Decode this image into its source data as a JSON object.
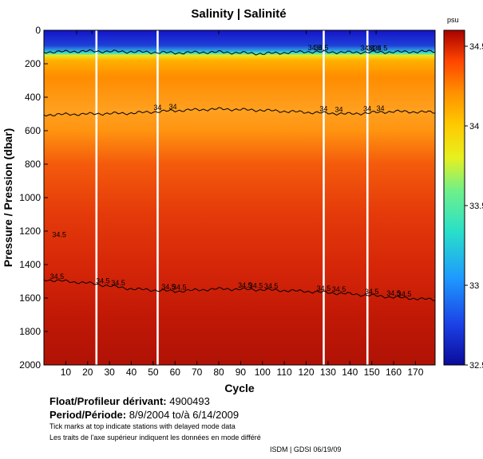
{
  "chart_data": {
    "type": "heatmap",
    "title": "Salinity | Salinité",
    "xlabel": "Cycle",
    "ylabel": "Pressure / Pression (dbar)",
    "xlim": [
      0,
      179
    ],
    "ylim": [
      2000,
      0
    ],
    "x_ticks": [
      10,
      20,
      30,
      40,
      50,
      60,
      70,
      80,
      90,
      100,
      110,
      120,
      130,
      140,
      150,
      160,
      170
    ],
    "y_ticks": [
      0,
      200,
      400,
      600,
      800,
      1000,
      1200,
      1400,
      1600,
      1800,
      2000
    ],
    "colorbar": {
      "unit": "psu",
      "range": [
        32.5,
        34.6
      ],
      "ticks": [
        32.5,
        33,
        33.5,
        34,
        34.5
      ]
    },
    "salinity_profile": [
      {
        "pressure": 0,
        "salinity": 32.6
      },
      {
        "pressure": 60,
        "salinity": 32.8
      },
      {
        "pressure": 120,
        "salinity": 33.6
      },
      {
        "pressure": 150,
        "salinity": 34.0
      },
      {
        "pressure": 200,
        "salinity": 34.15
      },
      {
        "pressure": 300,
        "salinity": 34.1
      },
      {
        "pressure": 500,
        "salinity": 34.0
      },
      {
        "pressure": 700,
        "salinity": 34.15
      },
      {
        "pressure": 1000,
        "salinity": 34.3
      },
      {
        "pressure": 1300,
        "salinity": 34.4
      },
      {
        "pressure": 1600,
        "salinity": 34.52
      },
      {
        "pressure": 2000,
        "salinity": 34.58
      }
    ],
    "contours": [
      {
        "level": 34.5,
        "label": "34.5",
        "pressure": [
          130,
          125,
          128,
          135,
          130,
          140,
          128,
          132,
          130,
          126
        ],
        "label_cycles": [
          124,
          127,
          148,
          151,
          154
        ]
      },
      {
        "level": 34,
        "label": "34",
        "pressure": [
          505,
          500,
          495,
          480,
          470,
          478,
          490,
          500,
          485,
          490
        ],
        "label_cycles": [
          52,
          59,
          128,
          135,
          148,
          154
        ]
      },
      {
        "level": 34.5,
        "label": "34.5",
        "pressure": [
          1490,
          1510,
          1545,
          1560,
          1545,
          1550,
          1560,
          1575,
          1595,
          1610
        ],
        "label_cycles": [
          6,
          27,
          34,
          57,
          62,
          92,
          97,
          104,
          128,
          135,
          150,
          160,
          165
        ]
      },
      {
        "level": 34.5,
        "label": "34.5",
        "pressure": [
          1245
        ],
        "label_cycles": [
          7
        ]
      }
    ],
    "missing_columns": [
      24,
      52,
      128,
      148
    ],
    "contour_cycle_grid": [
      0,
      20,
      40,
      60,
      80,
      100,
      120,
      140,
      160,
      179
    ],
    "delayed_mode_cycles": [
      15,
      22,
      80,
      120,
      140,
      152
    ]
  },
  "info": {
    "float_label": "Float/Profileur dérivant:",
    "float_id": "4900493",
    "period_label": "Period/Période:",
    "period_value": "8/9/2004  to/à  6/14/2009",
    "note_en": "Tick marks at top indicate stations with delayed mode data",
    "note_fr": "Les traits de l'axe supérieur indiquent les données en mode différé",
    "credit": "ISDM | GDSI  06/19/09"
  }
}
